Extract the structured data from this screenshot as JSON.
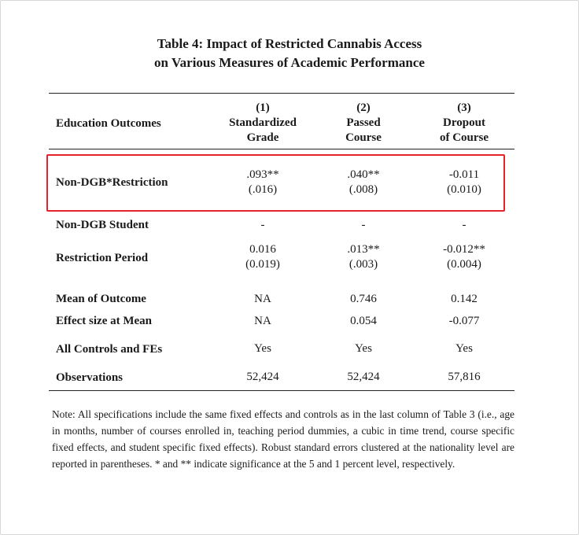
{
  "title_line1": "Table 4: Impact of Restricted Cannabis Access",
  "title_line2": "on Various Measures of Academic Performance",
  "header": {
    "label": "Education Outcomes",
    "columns": [
      {
        "num": "(1)",
        "line1": "Standardized",
        "line2": "Grade"
      },
      {
        "num": "(2)",
        "line1": "Passed",
        "line2": "Course"
      },
      {
        "num": "(3)",
        "line1": "Dropout",
        "line2": "of Course"
      }
    ]
  },
  "rows": [
    {
      "label": "Non-DGB*Restriction",
      "coef": [
        ".093**",
        ".040**",
        "-0.011"
      ],
      "se": [
        "(.016)",
        "(.008)",
        "(0.010)"
      ]
    },
    {
      "label": "Non-DGB Student",
      "coef": [
        "-",
        "-",
        "-"
      ]
    },
    {
      "label": "Restriction Period",
      "coef": [
        "0.016",
        ".013**",
        "-0.012**"
      ],
      "se": [
        "(0.019)",
        "(.003)",
        "(0.004)"
      ]
    },
    {
      "label": "Mean of Outcome",
      "coef": [
        "NA",
        "0.746",
        "0.142"
      ]
    },
    {
      "label": "Effect size at Mean",
      "coef": [
        "NA",
        "0.054",
        "-0.077"
      ]
    },
    {
      "label": "All Controls and FEs",
      "coef": [
        "Yes",
        "Yes",
        "Yes"
      ]
    },
    {
      "label": "Observations",
      "coef": [
        "52,424",
        "52,424",
        "57,816"
      ]
    }
  ],
  "highlight_color": "#e8222a",
  "note": "Note: All specifications include the same fixed effects and controls as in the last column of Table 3 (i.e., age in months, number of courses enrolled in, teaching period dummies, a cubic in time trend, course specific fixed effects, and student specific fixed effects). Robust standard errors clustered at the nationality level are reported in parentheses. * and ** indicate significance at the 5 and 1 percent level, respectively."
}
